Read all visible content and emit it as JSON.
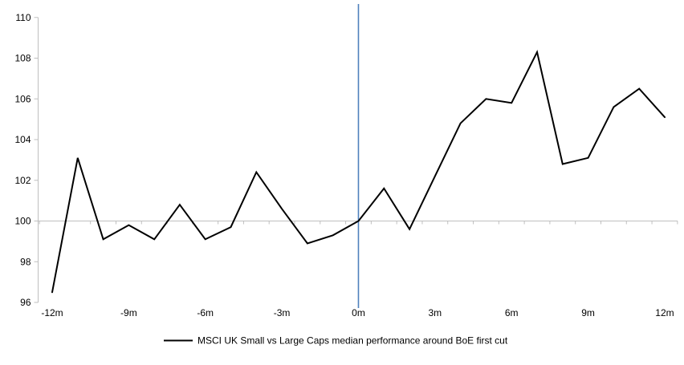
{
  "chart_data": {
    "type": "line",
    "categories": [
      "-12m",
      "-11m",
      "-10m",
      "-9m",
      "-8m",
      "-7m",
      "-6m",
      "-5m",
      "-4m",
      "-3m",
      "-2m",
      "-1m",
      "0m",
      "1m",
      "2m",
      "3m",
      "4m",
      "5m",
      "6m",
      "7m",
      "8m",
      "9m",
      "10m",
      "11m",
      "12m"
    ],
    "series": [
      {
        "name": "MSCI UK Small vs Large Caps median performance around BoE first cut",
        "values": [
          96.5,
          103.1,
          99.1,
          99.8,
          99.1,
          100.8,
          99.1,
          99.7,
          102.4,
          100.6,
          98.9,
          99.3,
          100.0,
          101.6,
          99.6,
          102.2,
          104.8,
          106.0,
          105.8,
          108.3,
          102.8,
          103.1,
          105.6,
          106.5,
          105.1
        ]
      }
    ],
    "series_name": "MSCI UK Small vs Large Caps median performance around BoE first cut",
    "xtick_labels": [
      "-12m",
      "-9m",
      "-6m",
      "-3m",
      "0m",
      "3m",
      "6m",
      "9m",
      "12m"
    ],
    "xtick_label_every": 3,
    "yticks": [
      96,
      98,
      100,
      102,
      104,
      106,
      108,
      110
    ],
    "ylim": [
      96,
      110
    ],
    "baseline_value": 100,
    "event_line_at": "0m",
    "grid": "off",
    "legend_position": "bottom",
    "colors": {
      "series": "#000000",
      "event_line": "#4F81BD",
      "axis": "#BFBFBF",
      "text": "#000000"
    }
  }
}
